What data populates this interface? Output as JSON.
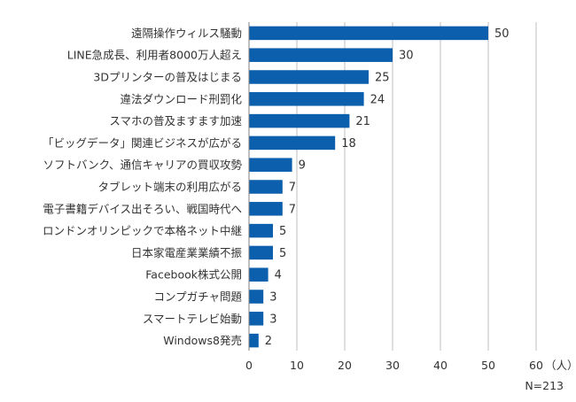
{
  "chart_data": {
    "type": "bar",
    "orientation": "horizontal",
    "categories": [
      "遠隔操作ウィルス騒動",
      "LINE急成長、利用者8000万人超え",
      "3Dプリンターの普及はじまる",
      "違法ダウンロード刑罰化",
      "スマホの普及ますます加速",
      "「ビッグデータ」関連ビジネスが広がる",
      "ソフトバンク、通信キャリアの買収攻勢",
      "タブレット端末の利用広がる",
      "電子書籍デバイス出そろい、戦国時代へ",
      "ロンドンオリンピックで本格ネット中継",
      "日本家電産業業績不振",
      "Facebook株式公開",
      "コンプガチャ問題",
      "スマートテレビ始動",
      "Windows8発売"
    ],
    "values": [
      50,
      30,
      25,
      24,
      21,
      18,
      9,
      7,
      7,
      5,
      5,
      4,
      3,
      3,
      2
    ],
    "xlim": [
      0,
      60
    ],
    "xticks": [
      0,
      10,
      20,
      30,
      40,
      50,
      60
    ],
    "xunit": "（人）",
    "note": "N=213",
    "grid": true,
    "bar_color": "#0b5fad",
    "grid_color": "#bfbfbf"
  }
}
